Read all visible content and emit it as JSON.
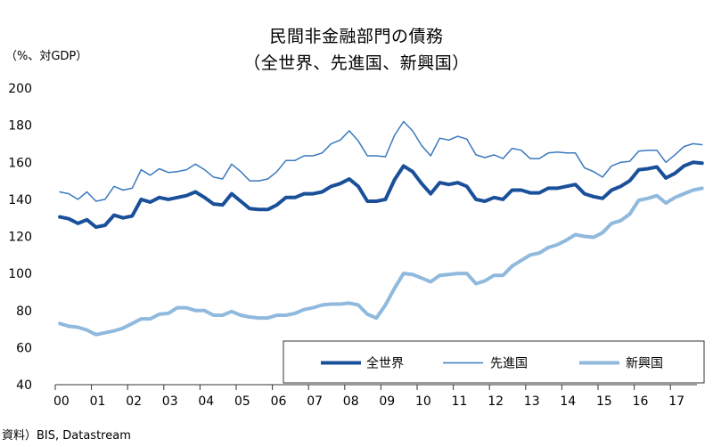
{
  "chart_data": {
    "type": "line",
    "title_line1": "民間非金融部門の債務",
    "title_line2": "（全世界、先進国、新興国）",
    "ylabel": "（%、対GDP）",
    "source": "資料）BIS, Datastream",
    "ylim": [
      40,
      200
    ],
    "y_ticks": [
      40,
      60,
      80,
      100,
      120,
      140,
      160,
      180,
      200
    ],
    "x_tick_labels": [
      "00",
      "01",
      "02",
      "03",
      "04",
      "05",
      "06",
      "07",
      "08",
      "09",
      "10",
      "11",
      "12",
      "13",
      "14",
      "15",
      "16",
      "17"
    ],
    "x_start_year": 2000,
    "points_per_year": 4,
    "grid": false,
    "legend_position": "bottom-right",
    "series": [
      {
        "name": "全世界",
        "color": "#1a4f9a",
        "width": 4,
        "values": [
          130.5,
          129.5,
          127,
          129,
          125,
          126,
          131.5,
          130,
          131,
          140,
          138.5,
          141,
          140,
          141,
          142,
          144,
          141,
          137.5,
          137,
          143,
          139,
          135,
          134.5,
          134.5,
          137,
          141,
          141,
          143,
          143,
          144,
          147,
          148.5,
          151,
          147,
          139,
          139,
          140,
          150.5,
          158,
          155,
          148.5,
          143,
          149,
          148,
          149,
          147,
          140,
          139,
          141,
          140,
          145,
          145,
          143.5,
          143.5,
          146,
          146,
          147,
          148,
          143,
          141.5,
          140.5,
          145,
          147,
          150,
          156,
          156.5,
          157.5,
          151.5,
          154,
          158,
          160,
          159.5
        ]
      },
      {
        "name": "先進国",
        "color": "#3a79be",
        "width": 1.5,
        "values": [
          144,
          143,
          140,
          144,
          139,
          140,
          147,
          145,
          146,
          156,
          153,
          156.5,
          154.5,
          155,
          156,
          159,
          156,
          152,
          151,
          159,
          155,
          150,
          150,
          151,
          155,
          161,
          161,
          163.5,
          163.5,
          165,
          170,
          172,
          177,
          171.5,
          163.5,
          163.5,
          163,
          174.5,
          182,
          177,
          169,
          163.5,
          173,
          172,
          174,
          172.5,
          164,
          162.5,
          164,
          162,
          167.5,
          166.5,
          162,
          162,
          165,
          165.5,
          165,
          165,
          157,
          155,
          152,
          158,
          160,
          160.5,
          166,
          166.5,
          166.5,
          160,
          164,
          168.5,
          170,
          169.5
        ]
      },
      {
        "name": "新興国",
        "color": "#8fb9dd",
        "width": 4,
        "values": [
          73,
          71.5,
          71,
          69.5,
          67,
          68,
          69,
          70.5,
          73,
          75.5,
          75.5,
          78,
          78.5,
          81.5,
          81.5,
          80,
          80,
          77.5,
          77.5,
          79.5,
          77.5,
          76.5,
          76,
          76,
          77.5,
          77.5,
          78.5,
          80.5,
          81.5,
          83,
          83.5,
          83.5,
          84,
          83,
          78,
          76,
          83,
          92,
          100,
          99.5,
          97.5,
          95.5,
          99,
          99.5,
          100,
          100,
          94.5,
          96,
          99,
          99,
          104,
          107,
          110,
          111,
          114,
          115.5,
          118,
          121,
          120,
          119.5,
          122,
          127,
          128.5,
          132,
          139.5,
          140.5,
          142,
          138,
          141,
          143,
          145,
          146
        ]
      }
    ]
  }
}
